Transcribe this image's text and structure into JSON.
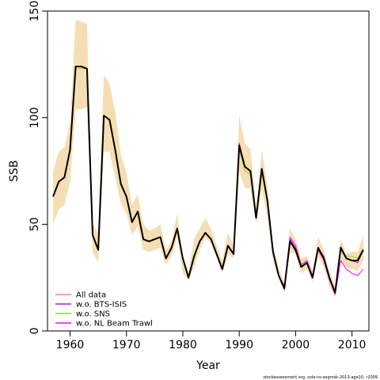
{
  "chart_data": {
    "type": "line",
    "title": "",
    "xlabel": "Year",
    "ylabel": "SSB",
    "xlim": [
      1956,
      2013
    ],
    "ylim": [
      0,
      150
    ],
    "xticks": [
      1960,
      1970,
      1980,
      1990,
      2000,
      2010
    ],
    "yticks": [
      0,
      50,
      100,
      150
    ],
    "grid": false,
    "legend_position": "bottom-left",
    "credit": "stockassessment.org, sole-ns-segrosk-2013-age10, r2009",
    "x": [
      1957,
      1958,
      1959,
      1960,
      1961,
      1962,
      1963,
      1964,
      1965,
      1966,
      1967,
      1968,
      1969,
      1970,
      1971,
      1972,
      1973,
      1974,
      1975,
      1976,
      1977,
      1978,
      1979,
      1980,
      1981,
      1982,
      1983,
      1984,
      1985,
      1986,
      1987,
      1988,
      1989,
      1990,
      1991,
      1992,
      1993,
      1994,
      1995,
      1996,
      1997,
      1998,
      1999,
      2000,
      2001,
      2002,
      2003,
      2004,
      2005,
      2006,
      2007,
      2008,
      2009,
      2010,
      2011,
      2012
    ],
    "band": {
      "color": "#f5deb3",
      "lower": [
        50,
        57,
        59,
        70,
        104,
        104,
        105,
        37,
        32,
        84,
        84,
        72,
        60,
        55,
        45,
        49,
        38,
        37,
        38,
        39,
        31,
        35,
        44,
        27,
        24,
        30,
        38,
        44,
        41,
        34,
        27,
        36,
        34,
        75,
        67,
        67,
        50,
        66,
        53,
        33,
        25,
        18,
        37,
        36,
        27,
        29,
        23,
        35,
        30,
        21,
        16,
        33,
        30,
        29,
        28,
        33
      ],
      "upper": [
        75,
        84,
        86,
        98,
        146,
        145,
        144,
        50,
        46,
        120,
        116,
        103,
        83,
        74,
        59,
        64,
        50,
        47,
        48,
        50,
        38,
        42,
        55,
        35,
        28,
        43,
        48,
        53,
        48,
        40,
        33,
        46,
        40,
        101,
        88,
        85,
        57,
        85,
        68,
        40,
        30,
        22,
        48,
        43,
        34,
        35,
        28,
        44,
        38,
        28,
        21,
        43,
        36,
        37,
        37,
        45
      ]
    },
    "series": [
      {
        "name": "All data",
        "color": "#ff7f7f",
        "width": 1,
        "values": [
          63,
          70,
          72,
          85,
          124,
          124,
          123,
          45,
          38,
          101,
          99,
          85,
          69,
          63,
          51,
          56,
          43,
          42,
          43,
          44,
          34,
          39,
          48,
          34,
          25,
          35,
          42,
          46,
          43,
          36,
          29,
          40,
          36,
          88,
          77,
          74,
          53,
          76,
          61,
          37,
          26,
          19,
          43,
          38,
          30,
          32,
          25,
          39,
          34,
          25,
          18,
          40,
          34,
          33,
          32,
          38
        ]
      },
      {
        "name": "w.o. BTS-ISIS",
        "color": "#a020f0",
        "width": 1,
        "values": [
          63,
          70,
          72,
          85,
          124,
          124,
          123,
          45,
          38,
          101,
          99,
          85,
          69,
          63,
          51,
          56,
          43,
          42,
          43,
          44,
          34,
          39,
          48,
          34,
          25,
          35,
          42,
          46,
          43,
          36,
          29,
          40,
          36,
          87,
          77,
          75,
          53,
          76,
          61,
          37,
          26,
          19,
          43,
          39,
          30,
          32,
          25,
          39,
          35,
          25,
          18,
          39,
          34,
          33,
          32,
          38
        ]
      },
      {
        "name": "w.o. SNS",
        "color": "#9acd32",
        "width": 1,
        "values": [
          63,
          70,
          72,
          85,
          123,
          123,
          123,
          45,
          38,
          101,
          99,
          85,
          69,
          63,
          51,
          56,
          43,
          42,
          43,
          44,
          34,
          39,
          48,
          34,
          25,
          35,
          42,
          46,
          43,
          36,
          29,
          40,
          36,
          85,
          75,
          73,
          53,
          76,
          61,
          37,
          26,
          19,
          42,
          37,
          30,
          32,
          25,
          38,
          34,
          25,
          18,
          38,
          35,
          35,
          34,
          39
        ]
      },
      {
        "name": "w.o. NL Beam Trawl",
        "color": "#ff00ff",
        "width": 1,
        "values": [
          63,
          70,
          72,
          85,
          124,
          124,
          123,
          45,
          38,
          101,
          99,
          85,
          69,
          63,
          51,
          56,
          43,
          42,
          43,
          44,
          34,
          39,
          48,
          34,
          25,
          35,
          42,
          46,
          43,
          36,
          29,
          40,
          36,
          88,
          77,
          75,
          53,
          76,
          61,
          37,
          26,
          21,
          44,
          40,
          31,
          33,
          26,
          38,
          33,
          24,
          17,
          33,
          29,
          27,
          26,
          29
        ]
      },
      {
        "name": "",
        "color": "#000000",
        "width": 2,
        "values": [
          63,
          70,
          72,
          85,
          124,
          124,
          123,
          45,
          38,
          101,
          99,
          85,
          69,
          63,
          51,
          56,
          43,
          42,
          43,
          44,
          34,
          39,
          48,
          34,
          25,
          35,
          42,
          46,
          43,
          36,
          29,
          40,
          36,
          87,
          77,
          75,
          53,
          76,
          61,
          37,
          26,
          20,
          42,
          38,
          30,
          32,
          25,
          39,
          34,
          25,
          18,
          39,
          34,
          33,
          33,
          38
        ]
      }
    ]
  }
}
